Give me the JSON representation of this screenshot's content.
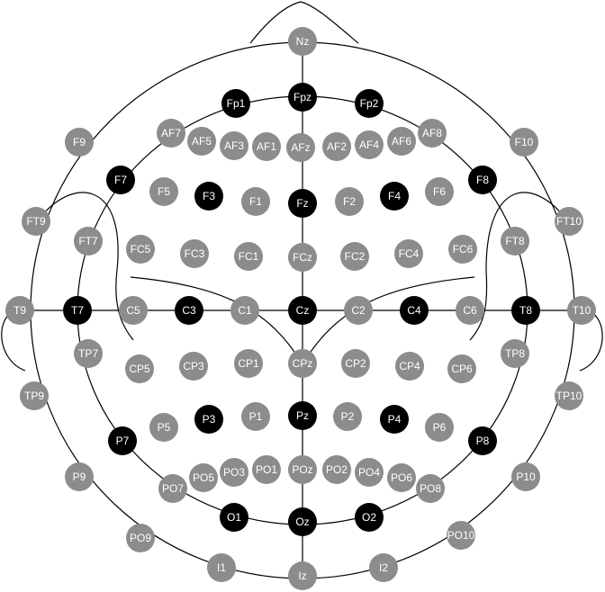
{
  "colors": {
    "gray": "#8c8c8c",
    "black": "#000000",
    "line": "#000000"
  },
  "electrodes": [
    {
      "label": "Nz",
      "style": "gray"
    },
    {
      "label": "Fpz",
      "style": "black"
    },
    {
      "label": "Fp1",
      "style": "black"
    },
    {
      "label": "Fp2",
      "style": "black"
    },
    {
      "label": "AF7",
      "style": "gray"
    },
    {
      "label": "AF5",
      "style": "gray"
    },
    {
      "label": "AF3",
      "style": "gray"
    },
    {
      "label": "AF1",
      "style": "gray"
    },
    {
      "label": "AFz",
      "style": "gray"
    },
    {
      "label": "AF2",
      "style": "gray"
    },
    {
      "label": "AF4",
      "style": "gray"
    },
    {
      "label": "AF6",
      "style": "gray"
    },
    {
      "label": "AF8",
      "style": "gray"
    },
    {
      "label": "F9",
      "style": "gray"
    },
    {
      "label": "F10",
      "style": "gray"
    },
    {
      "label": "F7",
      "style": "black"
    },
    {
      "label": "F5",
      "style": "gray"
    },
    {
      "label": "F3",
      "style": "black"
    },
    {
      "label": "F1",
      "style": "gray"
    },
    {
      "label": "Fz",
      "style": "black"
    },
    {
      "label": "F2",
      "style": "gray"
    },
    {
      "label": "F4",
      "style": "black"
    },
    {
      "label": "F6",
      "style": "gray"
    },
    {
      "label": "F8",
      "style": "black"
    },
    {
      "label": "FT9",
      "style": "gray"
    },
    {
      "label": "FT10",
      "style": "gray"
    },
    {
      "label": "FT7",
      "style": "gray"
    },
    {
      "label": "FT8",
      "style": "gray"
    },
    {
      "label": "FC5",
      "style": "gray"
    },
    {
      "label": "FC3",
      "style": "gray"
    },
    {
      "label": "FC1",
      "style": "gray"
    },
    {
      "label": "FCz",
      "style": "gray"
    },
    {
      "label": "FC2",
      "style": "gray"
    },
    {
      "label": "FC4",
      "style": "gray"
    },
    {
      "label": "FC6",
      "style": "gray"
    },
    {
      "label": "T9",
      "style": "gray"
    },
    {
      "label": "T7",
      "style": "black"
    },
    {
      "label": "C5",
      "style": "gray"
    },
    {
      "label": "C3",
      "style": "black"
    },
    {
      "label": "C1",
      "style": "gray"
    },
    {
      "label": "Cz",
      "style": "black"
    },
    {
      "label": "C2",
      "style": "gray"
    },
    {
      "label": "C4",
      "style": "black"
    },
    {
      "label": "C6",
      "style": "gray"
    },
    {
      "label": "T8",
      "style": "black"
    },
    {
      "label": "T10",
      "style": "gray"
    },
    {
      "label": "TP7",
      "style": "gray"
    },
    {
      "label": "CP5",
      "style": "gray"
    },
    {
      "label": "CP3",
      "style": "gray"
    },
    {
      "label": "CP1",
      "style": "gray"
    },
    {
      "label": "CPz",
      "style": "gray"
    },
    {
      "label": "CP2",
      "style": "gray"
    },
    {
      "label": "CP4",
      "style": "gray"
    },
    {
      "label": "CP6",
      "style": "gray"
    },
    {
      "label": "TP8",
      "style": "gray"
    },
    {
      "label": "TP9",
      "style": "gray"
    },
    {
      "label": "TP10",
      "style": "gray"
    },
    {
      "label": "P7",
      "style": "black"
    },
    {
      "label": "P5",
      "style": "gray"
    },
    {
      "label": "P3",
      "style": "black"
    },
    {
      "label": "P1",
      "style": "gray"
    },
    {
      "label": "Pz",
      "style": "black"
    },
    {
      "label": "P2",
      "style": "gray"
    },
    {
      "label": "P4",
      "style": "black"
    },
    {
      "label": "P6",
      "style": "gray"
    },
    {
      "label": "P8",
      "style": "black"
    },
    {
      "label": "P9",
      "style": "gray"
    },
    {
      "label": "P10",
      "style": "gray"
    },
    {
      "label": "PO7",
      "style": "gray"
    },
    {
      "label": "PO5",
      "style": "gray"
    },
    {
      "label": "PO3",
      "style": "gray"
    },
    {
      "label": "PO1",
      "style": "gray"
    },
    {
      "label": "POz",
      "style": "gray"
    },
    {
      "label": "PO2",
      "style": "gray"
    },
    {
      "label": "PO4",
      "style": "gray"
    },
    {
      "label": "PO6",
      "style": "gray"
    },
    {
      "label": "PO8",
      "style": "gray"
    },
    {
      "label": "O1",
      "style": "black"
    },
    {
      "label": "Oz",
      "style": "black"
    },
    {
      "label": "O2",
      "style": "black"
    },
    {
      "label": "PO9",
      "style": "gray"
    },
    {
      "label": "PO10",
      "style": "gray"
    },
    {
      "label": "I1",
      "style": "gray"
    },
    {
      "label": "I2",
      "style": "gray"
    },
    {
      "label": "Iz",
      "style": "gray"
    }
  ]
}
